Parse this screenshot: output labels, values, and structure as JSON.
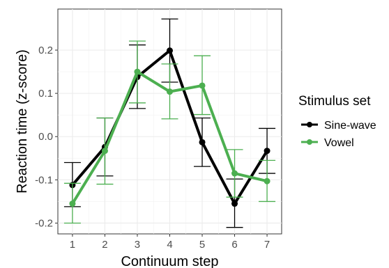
{
  "chart_data": {
    "type": "line",
    "xlabel": "Continuum step",
    "ylabel": "Reaction time (z-score)",
    "x": [
      1,
      2,
      3,
      4,
      5,
      6,
      7
    ],
    "xlim": [
      0.55,
      7.45
    ],
    "ylim": [
      -0.225,
      0.295
    ],
    "yticks": [
      -0.2,
      -0.1,
      0.0,
      0.1,
      0.2
    ],
    "ytick_labels": [
      "-0.2",
      "-0.1",
      "0.0",
      "0.1",
      "0.2"
    ],
    "grid": true,
    "legend": {
      "title": "Stimulus set",
      "placement": "right"
    },
    "series": [
      {
        "name": "Sine-wave",
        "color": "#000000",
        "values": [
          -0.112,
          -0.024,
          0.138,
          0.199,
          -0.013,
          -0.155,
          -0.033
        ],
        "err_low": [
          -0.162,
          -0.091,
          0.065,
          0.126,
          -0.069,
          -0.21,
          -0.085
        ],
        "err_high": [
          -0.06,
          0.043,
          0.212,
          0.272,
          0.043,
          -0.098,
          0.019
        ]
      },
      {
        "name": "Vowel",
        "color": "#4caf50",
        "values": [
          -0.155,
          -0.033,
          0.15,
          0.104,
          0.118,
          -0.085,
          -0.103
        ],
        "err_low": [
          -0.2,
          -0.11,
          0.078,
          0.041,
          0.051,
          -0.14,
          -0.15
        ],
        "err_high": [
          -0.108,
          0.043,
          0.221,
          0.168,
          0.187,
          -0.03,
          -0.055
        ]
      }
    ]
  }
}
